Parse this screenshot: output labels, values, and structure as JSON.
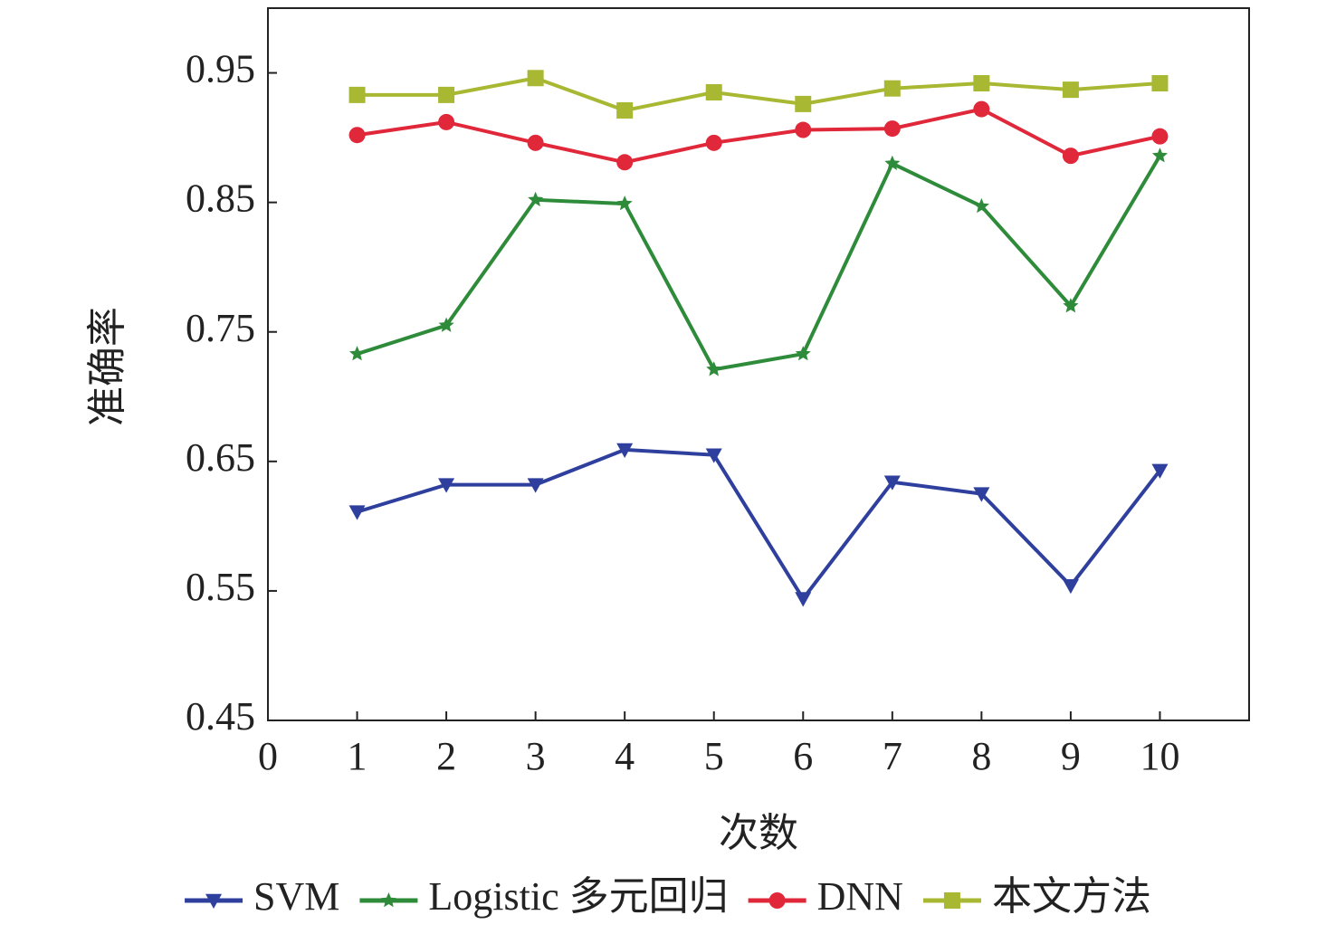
{
  "chart_data": {
    "type": "line",
    "x_label": "次数",
    "y_label": "准确率",
    "x": [
      1,
      2,
      3,
      4,
      5,
      6,
      7,
      8,
      9,
      10
    ],
    "xlim": [
      0,
      11
    ],
    "xticks": [
      0,
      1,
      2,
      3,
      4,
      5,
      6,
      7,
      8,
      9,
      10
    ],
    "ylim": [
      0.45,
      1.0
    ],
    "yticks": [
      0.45,
      0.55,
      0.65,
      0.75,
      0.85,
      0.95
    ],
    "legend": "bottom",
    "series": [
      {
        "name": "SVM",
        "color": "#2e3f9e",
        "marker": "triangle-down",
        "values": [
          0.611,
          0.632,
          0.632,
          0.659,
          0.655,
          0.544,
          0.634,
          0.625,
          0.554,
          0.643
        ]
      },
      {
        "name": "Logistic 多元回归",
        "color": "#2e8b3a",
        "marker": "star",
        "values": [
          0.733,
          0.755,
          0.852,
          0.849,
          0.721,
          0.733,
          0.88,
          0.847,
          0.77,
          0.886
        ]
      },
      {
        "name": "DNN",
        "color": "#e0283a",
        "marker": "circle",
        "values": [
          0.902,
          0.912,
          0.896,
          0.881,
          0.896,
          0.906,
          0.907,
          0.922,
          0.886,
          0.901
        ]
      },
      {
        "name": "本文方法",
        "color": "#a8b832",
        "marker": "square",
        "values": [
          0.933,
          0.933,
          0.946,
          0.921,
          0.935,
          0.926,
          0.938,
          0.942,
          0.937,
          0.942
        ]
      }
    ]
  }
}
